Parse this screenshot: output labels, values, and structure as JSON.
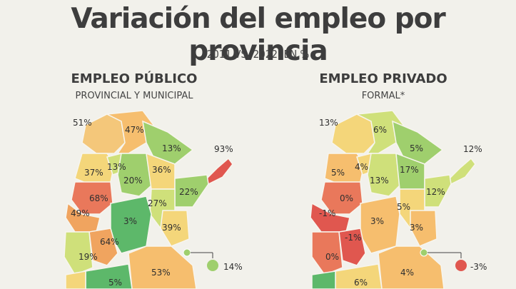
{
  "title": "Variación del empleo por provincia",
  "subtitle": "2011 VS. 2022, EN %",
  "colors": {
    "dark_green": "#5db86a",
    "green": "#9fcf6d",
    "light_green": "#cfe07a",
    "yellow": "#f4d67a",
    "light_orange": "#f6be6e",
    "orange": "#f0a45f",
    "red_orange": "#e9785b",
    "red": "#e0574f",
    "background": "#f2f1eb"
  },
  "public": {
    "title": "EMPLEO PÚBLICO",
    "subtitle": "PROVINCIAL Y MUNICIPAL",
    "labels": {
      "jujuy_salta_w": "51%",
      "salta": "47%",
      "formosa": "13%",
      "misiones": "93%",
      "catamarca": "37%",
      "tucuman": "13%",
      "santiago": "20%",
      "chaco": "36%",
      "corrientes": "22%",
      "la_rioja": "68%",
      "santa_fe": "27%",
      "san_juan": "49%",
      "cordoba": "3%",
      "entre_rios": "39%",
      "san_luis": "64%",
      "mendoza": "19%",
      "caba": "14%",
      "buenos_aires": "53%",
      "la_pampa": "5%"
    }
  },
  "private": {
    "title": "EMPLEO PRIVADO",
    "subtitle": "FORMAL*",
    "labels": {
      "jujuy_salta_w": "13%",
      "salta": "6%",
      "formosa": "5%",
      "misiones": "12%",
      "catamarca": "5%",
      "tucuman": "4%",
      "santiago": "13%",
      "chaco": "17%",
      "corrientes": "12%",
      "la_rioja": "0%",
      "santa_fe": "5%",
      "san_juan": "-1%",
      "cordoba": "3%",
      "entre_rios": "3%",
      "san_luis": "-1%",
      "mendoza": "0%",
      "caba": "-3%",
      "buenos_aires": "4%",
      "la_pampa": "6%"
    }
  }
}
